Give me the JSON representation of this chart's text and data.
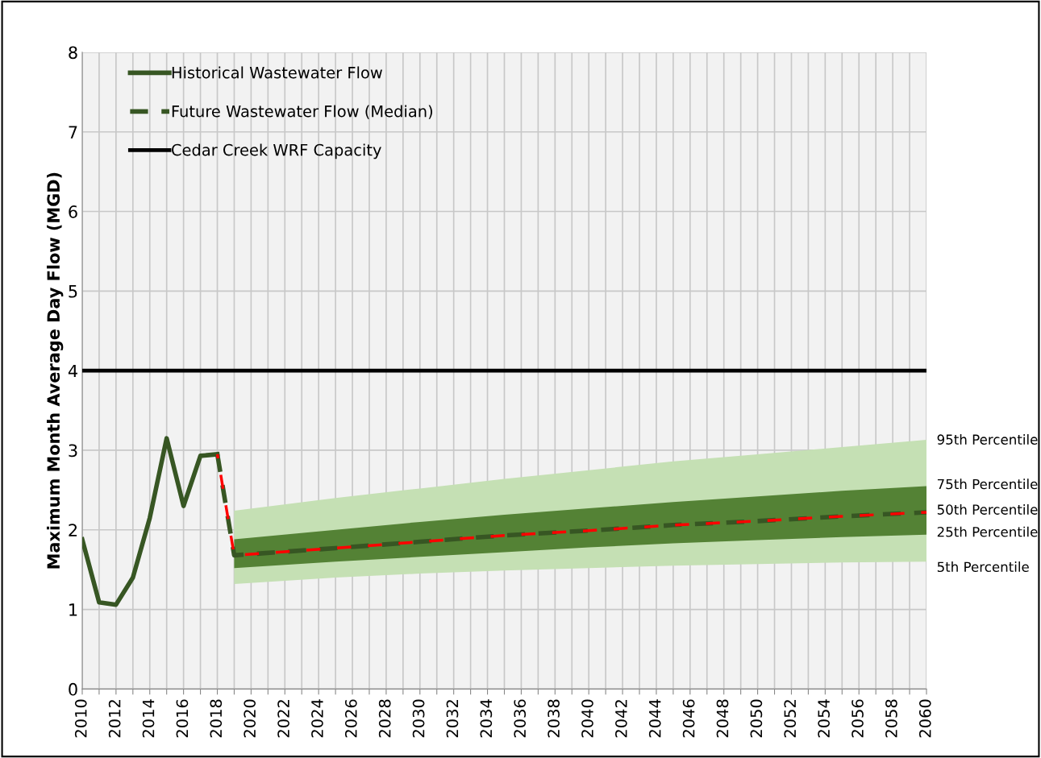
{
  "chart_data": {
    "type": "line",
    "ylabel": "Maximum Month Average Day Flow (MGD)",
    "xlim": [
      2010,
      2060
    ],
    "ylim": [
      0,
      8
    ],
    "yticks": [
      0,
      1,
      2,
      3,
      4,
      5,
      6,
      7,
      8
    ],
    "xticks": [
      2010,
      {
        "value": 2011,
        "label": null
      },
      2012,
      {
        "value": 2013,
        "label": null
      },
      2014,
      {
        "value": 2015,
        "label": null
      },
      2016,
      {
        "value": 2017,
        "label": null
      },
      2018,
      {
        "value": 2019,
        "label": null
      },
      2020,
      {
        "value": 2021,
        "label": null
      },
      2022,
      {
        "value": 2023,
        "label": null
      },
      2024,
      {
        "value": 2025,
        "label": null
      },
      2026,
      {
        "value": 2027,
        "label": null
      },
      2028,
      {
        "value": 2029,
        "label": null
      },
      2030,
      {
        "value": 2031,
        "label": null
      },
      2032,
      {
        "value": 2033,
        "label": null
      },
      2034,
      {
        "value": 2035,
        "label": null
      },
      2036,
      {
        "value": 2037,
        "label": null
      },
      2038,
      {
        "value": 2039,
        "label": null
      },
      2040,
      {
        "value": 2041,
        "label": null
      },
      2042,
      {
        "value": 2043,
        "label": null
      },
      2044,
      {
        "value": 2045,
        "label": null
      },
      2046,
      {
        "value": 2047,
        "label": null
      },
      2048,
      {
        "value": 2049,
        "label": null
      },
      2050,
      {
        "value": 2051,
        "label": null
      },
      2052,
      {
        "value": 2053,
        "label": null
      },
      2054,
      {
        "value": 2055,
        "label": null
      },
      2056,
      {
        "value": 2057,
        "label": null
      },
      2058,
      {
        "value": 2059,
        "label": null
      },
      2060
    ],
    "grid": true,
    "legend": "top left",
    "marker": "none",
    "series": [
      {
        "name": "Historical Wastewater Flow",
        "color": "#375623",
        "line_style": "solid",
        "x": [
          2010,
          2011,
          2012,
          2013,
          2014,
          2015,
          2016,
          2017,
          2018
        ],
        "values": [
          1.88,
          1.09,
          1.06,
          1.4,
          2.15,
          3.15,
          2.3,
          2.93,
          2.95
        ]
      },
      {
        "color": "#ff0000",
        "line_style": "dashed",
        "x": [
          2018,
          2019,
          2025,
          2030,
          2035,
          2040,
          2045,
          2050,
          2055,
          2060
        ],
        "values": [
          2.95,
          1.68,
          1.77,
          1.85,
          1.93,
          1.99,
          2.06,
          2.11,
          2.17,
          2.22
        ],
        "lower": [
          null,
          1.32,
          1.4,
          1.45,
          1.49,
          1.52,
          1.55,
          1.57,
          1.59,
          1.6
        ],
        "upper": [
          null,
          2.24,
          2.4,
          2.52,
          2.64,
          2.75,
          2.86,
          2.95,
          3.04,
          3.13
        ]
      },
      {
        "name": "Future Wastewater Flow (Median)",
        "color": "#375623",
        "line_style": "dashed",
        "x": [
          2018,
          2019,
          2025,
          2030,
          2035,
          2040,
          2045,
          2050,
          2055,
          2060
        ],
        "values": [
          2.95,
          1.68,
          1.77,
          1.85,
          1.93,
          1.99,
          2.06,
          2.11,
          2.17,
          2.22
        ],
        "lower": [
          null,
          1.52,
          1.6,
          1.66,
          1.72,
          1.78,
          1.83,
          1.87,
          1.91,
          1.94
        ],
        "upper": [
          null,
          1.88,
          2.0,
          2.1,
          2.19,
          2.27,
          2.35,
          2.42,
          2.49,
          2.55
        ]
      }
    ],
    "ref_lines": [
      {
        "axis": "y",
        "value": 4,
        "label": "Cedar Creek WRF Capacity",
        "color": "#000000",
        "line_style": "solid"
      }
    ],
    "annotations": [
      "95th Percentile",
      "75th Percentile",
      "50th Percentile",
      "25th Percentile",
      "5th Percentile"
    ]
  }
}
